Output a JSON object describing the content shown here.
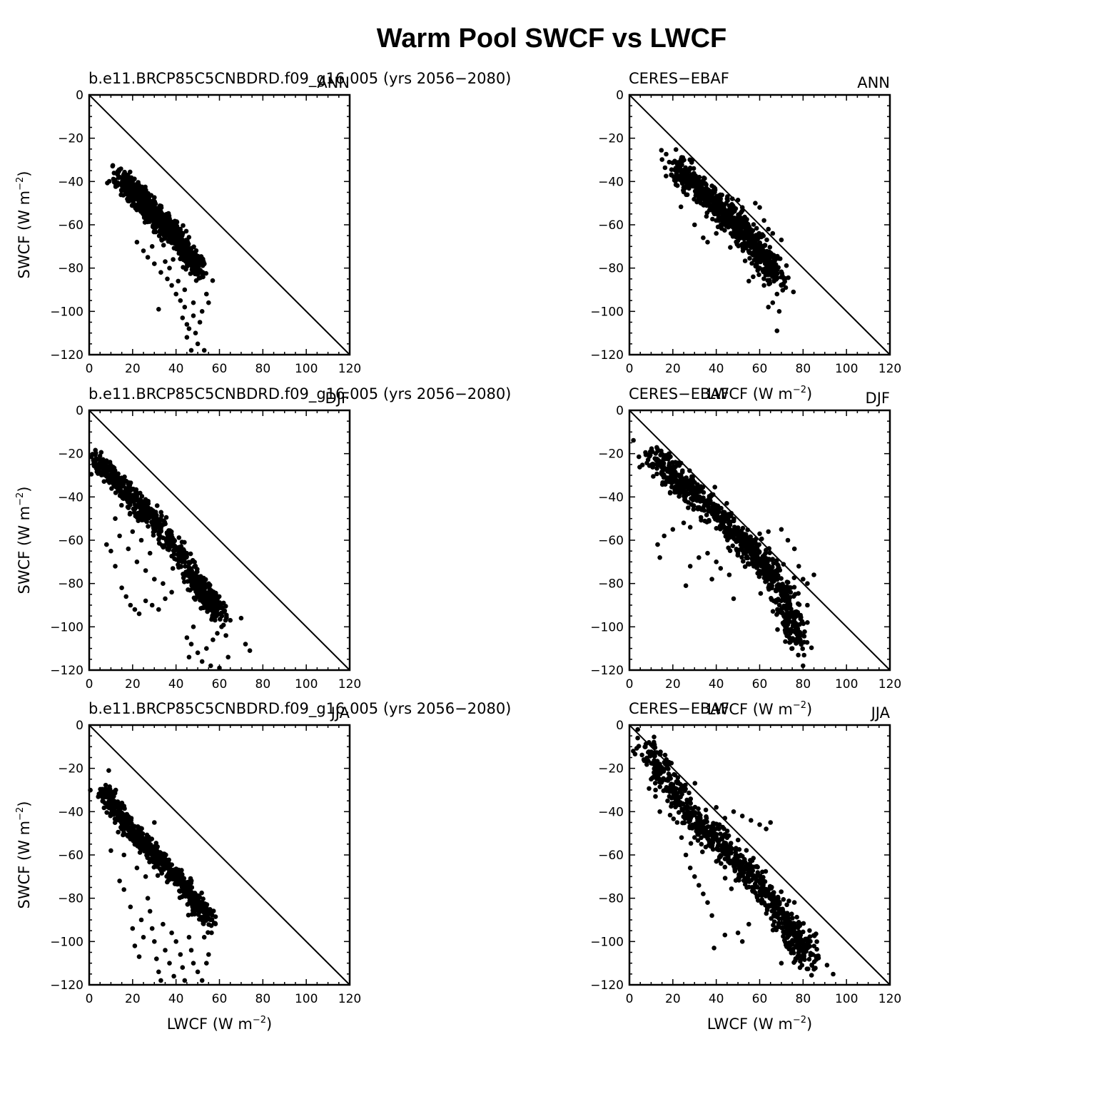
{
  "figure": {
    "title": "Warm Pool SWCF vs LWCF"
  },
  "chart_data": [
    {
      "type": "scatter",
      "left_string": "b.e11.BRCP85C5CNBDRD.f09_g16.005 (yrs 2056−2080)",
      "right_string": "ANN",
      "ylabel": "SWCF (W m⁻²)",
      "ylabel_main": "SWCF (W m",
      "ylabel_sup": "−2",
      "ylabel_close": ")",
      "xlabel_main": "",
      "xlabel_sup": "",
      "xlabel_close": "",
      "xlim": [
        0,
        120
      ],
      "ylim": [
        -120,
        0
      ],
      "x_ticks": [
        "0",
        "20",
        "40",
        "60",
        "80",
        "100",
        "120"
      ],
      "y_ticks": [
        "0",
        "−20",
        "−40",
        "−60",
        "−80",
        "−100",
        "−120"
      ],
      "reference_line": {
        "x": [
          0,
          120
        ],
        "y": [
          0,
          -120
        ]
      },
      "point_cloud": {
        "spine": [
          [
            15,
            -38
          ],
          [
            20,
            -44
          ],
          [
            25,
            -50
          ],
          [
            30,
            -55
          ],
          [
            35,
            -60
          ],
          [
            40,
            -66
          ],
          [
            45,
            -73
          ],
          [
            50,
            -80
          ]
        ],
        "spread": 4.5,
        "count": 900
      },
      "points": [
        [
          22,
          -68
        ],
        [
          25,
          -72
        ],
        [
          27,
          -75
        ],
        [
          30,
          -78
        ],
        [
          33,
          -82
        ],
        [
          36,
          -85
        ],
        [
          38,
          -88
        ],
        [
          32,
          -99
        ],
        [
          40,
          -92
        ],
        [
          42,
          -95
        ],
        [
          44,
          -98
        ],
        [
          43,
          -103
        ],
        [
          45,
          -106
        ],
        [
          46,
          -108
        ],
        [
          48,
          -102
        ],
        [
          49,
          -110
        ],
        [
          45,
          -112
        ],
        [
          50,
          -115
        ],
        [
          47,
          -118
        ],
        [
          53,
          -118
        ],
        [
          51,
          -105
        ],
        [
          48,
          -96
        ],
        [
          52,
          -100
        ],
        [
          54,
          -92
        ],
        [
          55,
          -96
        ],
        [
          44,
          -90
        ],
        [
          41,
          -86
        ],
        [
          37,
          -80
        ],
        [
          35,
          -77
        ],
        [
          29,
          -70
        ]
      ]
    },
    {
      "type": "scatter",
      "left_string": "CERES−EBAF",
      "right_string": "ANN",
      "ylabel": "",
      "ylabel_main": "",
      "ylabel_sup": "",
      "ylabel_close": "",
      "xlabel_main": "LWCF (W m",
      "xlabel_sup": "−2",
      "xlabel_close": ")",
      "xlim": [
        0,
        120
      ],
      "ylim": [
        -120,
        0
      ],
      "x_ticks": [
        "0",
        "20",
        "40",
        "60",
        "80",
        "100",
        "120"
      ],
      "y_ticks": [
        "0",
        "−20",
        "−40",
        "−60",
        "−80",
        "−100",
        "−120"
      ],
      "reference_line": {
        "x": [
          0,
          120
        ],
        "y": [
          0,
          -120
        ]
      },
      "point_cloud": {
        "spine": [
          [
            22,
            -34
          ],
          [
            28,
            -39
          ],
          [
            34,
            -45
          ],
          [
            40,
            -51
          ],
          [
            46,
            -57
          ],
          [
            52,
            -63
          ],
          [
            58,
            -70
          ],
          [
            63,
            -76
          ],
          [
            67,
            -83
          ]
        ],
        "spread": 5.5,
        "count": 800
      },
      "points": [
        [
          29,
          -30
        ],
        [
          38,
          -42
        ],
        [
          30,
          -60
        ],
        [
          34,
          -66
        ],
        [
          45,
          -48
        ],
        [
          52,
          -52
        ],
        [
          58,
          -50
        ],
        [
          60,
          -52
        ],
        [
          62,
          -58
        ],
        [
          64,
          -62
        ],
        [
          66,
          -64
        ],
        [
          70,
          -67
        ],
        [
          72,
          -89
        ],
        [
          68,
          -92
        ],
        [
          66,
          -96
        ],
        [
          64,
          -98
        ],
        [
          68,
          -109
        ],
        [
          69,
          -100
        ],
        [
          62,
          -88
        ],
        [
          57,
          -84
        ],
        [
          55,
          -86
        ],
        [
          60,
          -80
        ],
        [
          65,
          -78
        ],
        [
          70,
          -88
        ],
        [
          36,
          -68
        ],
        [
          40,
          -64
        ]
      ]
    },
    {
      "type": "scatter",
      "left_string": "b.e11.BRCP85C5CNBDRD.f09_g16.005 (yrs 2056−2080)",
      "right_string": "DJF",
      "ylabel": "SWCF (W m⁻²)",
      "ylabel_main": "SWCF (W m",
      "ylabel_sup": "−2",
      "ylabel_close": ")",
      "xlabel_main": "",
      "xlabel_sup": "",
      "xlabel_close": "",
      "xlim": [
        0,
        120
      ],
      "ylim": [
        -120,
        0
      ],
      "x_ticks": [
        "0",
        "20",
        "40",
        "60",
        "80",
        "100",
        "120"
      ],
      "y_ticks": [
        "0",
        "−20",
        "−40",
        "−60",
        "−80",
        "−100",
        "−120"
      ],
      "reference_line": {
        "x": [
          0,
          120
        ],
        "y": [
          0,
          -120
        ]
      },
      "point_cloud": {
        "spine": [
          [
            4,
            -23
          ],
          [
            10,
            -30
          ],
          [
            17,
            -38
          ],
          [
            25,
            -46
          ],
          [
            32,
            -53
          ],
          [
            40,
            -64
          ],
          [
            48,
            -78
          ],
          [
            55,
            -87
          ],
          [
            60,
            -94
          ]
        ],
        "spread": 4.5,
        "count": 700
      },
      "points": [
        [
          8,
          -62
        ],
        [
          10,
          -65
        ],
        [
          12,
          -72
        ],
        [
          15,
          -82
        ],
        [
          17,
          -86
        ],
        [
          19,
          -90
        ],
        [
          21,
          -92
        ],
        [
          23,
          -94
        ],
        [
          26,
          -88
        ],
        [
          29,
          -90
        ],
        [
          32,
          -92
        ],
        [
          35,
          -87
        ],
        [
          38,
          -84
        ],
        [
          14,
          -58
        ],
        [
          18,
          -64
        ],
        [
          22,
          -70
        ],
        [
          26,
          -74
        ],
        [
          30,
          -78
        ],
        [
          34,
          -80
        ],
        [
          12,
          -50
        ],
        [
          20,
          -56
        ],
        [
          24,
          -60
        ],
        [
          28,
          -66
        ],
        [
          45,
          -105
        ],
        [
          47,
          -108
        ],
        [
          50,
          -112
        ],
        [
          52,
          -116
        ],
        [
          54,
          -110
        ],
        [
          57,
          -106
        ],
        [
          59,
          -103
        ],
        [
          61,
          -100
        ],
        [
          63,
          -104
        ],
        [
          65,
          -97
        ],
        [
          70,
          -96
        ],
        [
          72,
          -108
        ],
        [
          74,
          -111
        ],
        [
          48,
          -100
        ],
        [
          46,
          -114
        ],
        [
          56,
          -118
        ],
        [
          60,
          -119
        ],
        [
          64,
          -114
        ]
      ]
    },
    {
      "type": "scatter",
      "left_string": "CERES−EBAF",
      "right_string": "DJF",
      "ylabel": "",
      "ylabel_main": "",
      "ylabel_sup": "",
      "ylabel_close": "",
      "xlabel_main": "LWCF (W m",
      "xlabel_sup": "−2",
      "xlabel_close": ")",
      "xlim": [
        0,
        120
      ],
      "ylim": [
        -120,
        0
      ],
      "x_ticks": [
        "0",
        "20",
        "40",
        "60",
        "80",
        "100",
        "120"
      ],
      "y_ticks": [
        "0",
        "−20",
        "−40",
        "−60",
        "−80",
        "−100",
        "−120"
      ],
      "reference_line": {
        "x": [
          0,
          120
        ],
        "y": [
          0,
          -120
        ]
      },
      "point_cloud": {
        "spine": [
          [
            10,
            -21
          ],
          [
            18,
            -28
          ],
          [
            26,
            -35
          ],
          [
            34,
            -42
          ],
          [
            42,
            -50
          ],
          [
            50,
            -58
          ],
          [
            58,
            -66
          ],
          [
            64,
            -74
          ],
          [
            70,
            -84
          ],
          [
            74,
            -95
          ],
          [
            76,
            -106
          ]
        ],
        "spread": 5.5,
        "count": 900
      },
      "points": [
        [
          13,
          -18
        ],
        [
          13,
          -62
        ],
        [
          14,
          -68
        ],
        [
          16,
          -58
        ],
        [
          20,
          -55
        ],
        [
          25,
          -52
        ],
        [
          28,
          -54
        ],
        [
          26,
          -81
        ],
        [
          28,
          -72
        ],
        [
          32,
          -68
        ],
        [
          36,
          -66
        ],
        [
          40,
          -70
        ],
        [
          42,
          -73
        ],
        [
          46,
          -76
        ],
        [
          38,
          -78
        ],
        [
          50,
          -66
        ],
        [
          52,
          -63
        ],
        [
          56,
          -60
        ],
        [
          60,
          -57
        ],
        [
          64,
          -56
        ],
        [
          70,
          -55
        ],
        [
          73,
          -60
        ],
        [
          76,
          -64
        ],
        [
          78,
          -72
        ],
        [
          80,
          -78
        ],
        [
          82,
          -80
        ],
        [
          85,
          -76
        ],
        [
          48,
          -87
        ],
        [
          82,
          -90
        ],
        [
          82,
          -98
        ],
        [
          80,
          -104
        ],
        [
          80,
          -118
        ],
        [
          75,
          -110
        ]
      ]
    },
    {
      "type": "scatter",
      "left_string": "b.e11.BRCP85C5CNBDRD.f09_g16.005 (yrs 2056−2080)",
      "right_string": "JJA",
      "ylabel": "SWCF (W m⁻²)",
      "ylabel_main": "SWCF (W m",
      "ylabel_sup": "−2",
      "ylabel_close": ")",
      "xlabel_main": "LWCF (W m",
      "xlabel_sup": "−2",
      "xlabel_close": ")",
      "xlim": [
        0,
        120
      ],
      "ylim": [
        -120,
        0
      ],
      "x_ticks": [
        "0",
        "20",
        "40",
        "60",
        "80",
        "100",
        "120"
      ],
      "y_ticks": [
        "0",
        "−20",
        "−40",
        "−60",
        "−80",
        "−100",
        "−120"
      ],
      "reference_line": {
        "x": [
          0,
          120
        ],
        "y": [
          0,
          -120
        ]
      },
      "point_cloud": {
        "spine": [
          [
            7,
            -30
          ],
          [
            12,
            -38
          ],
          [
            18,
            -47
          ],
          [
            25,
            -55
          ],
          [
            32,
            -62
          ],
          [
            38,
            -68
          ],
          [
            44,
            -75
          ],
          [
            50,
            -83
          ],
          [
            55,
            -90
          ]
        ],
        "spread": 4.0,
        "count": 650
      },
      "points": [
        [
          9,
          -21
        ],
        [
          10,
          -58
        ],
        [
          14,
          -72
        ],
        [
          16,
          -76
        ],
        [
          19,
          -84
        ],
        [
          20,
          -94
        ],
        [
          21,
          -102
        ],
        [
          23,
          -107
        ],
        [
          24,
          -90
        ],
        [
          25,
          -98
        ],
        [
          27,
          -80
        ],
        [
          28,
          -86
        ],
        [
          29,
          -94
        ],
        [
          30,
          -100
        ],
        [
          31,
          -108
        ],
        [
          32,
          -114
        ],
        [
          33,
          -118
        ],
        [
          34,
          -92
        ],
        [
          35,
          -104
        ],
        [
          37,
          -110
        ],
        [
          38,
          -96
        ],
        [
          39,
          -116
        ],
        [
          40,
          -100
        ],
        [
          42,
          -106
        ],
        [
          43,
          -112
        ],
        [
          44,
          -118
        ],
        [
          46,
          -98
        ],
        [
          47,
          -104
        ],
        [
          48,
          -110
        ],
        [
          50,
          -114
        ],
        [
          52,
          -118
        ],
        [
          54,
          -110
        ],
        [
          55,
          -106
        ],
        [
          53,
          -98
        ],
        [
          30,
          -45
        ],
        [
          16,
          -60
        ],
        [
          22,
          -66
        ],
        [
          26,
          -70
        ]
      ]
    },
    {
      "type": "scatter",
      "left_string": "CERES−EBAF",
      "right_string": "JJA",
      "ylabel": "",
      "ylabel_main": "",
      "ylabel_sup": "",
      "ylabel_close": "",
      "xlabel_main": "LWCF (W m",
      "xlabel_sup": "−2",
      "xlabel_close": ")",
      "xlim": [
        0,
        120
      ],
      "ylim": [
        -120,
        0
      ],
      "x_ticks": [
        "0",
        "20",
        "40",
        "60",
        "80",
        "100",
        "120"
      ],
      "y_ticks": [
        "0",
        "−20",
        "−40",
        "−60",
        "−80",
        "−100",
        "−120"
      ],
      "reference_line": {
        "x": [
          0,
          120
        ],
        "y": [
          0,
          -120
        ]
      },
      "point_cloud": {
        "spine": [
          [
            8,
            -10
          ],
          [
            14,
            -20
          ],
          [
            20,
            -30
          ],
          [
            27,
            -40
          ],
          [
            34,
            -48
          ],
          [
            42,
            -56
          ],
          [
            50,
            -64
          ],
          [
            58,
            -72
          ],
          [
            66,
            -82
          ],
          [
            73,
            -92
          ],
          [
            79,
            -101
          ],
          [
            82,
            -108
          ]
        ],
        "spread": 6.0,
        "count": 800
      },
      "points": [
        [
          9,
          -8
        ],
        [
          10,
          -25
        ],
        [
          12,
          -33
        ],
        [
          14,
          -40
        ],
        [
          22,
          -45
        ],
        [
          24,
          -52
        ],
        [
          26,
          -60
        ],
        [
          28,
          -66
        ],
        [
          30,
          -70
        ],
        [
          32,
          -74
        ],
        [
          34,
          -78
        ],
        [
          36,
          -82
        ],
        [
          38,
          -88
        ],
        [
          39,
          -103
        ],
        [
          44,
          -97
        ],
        [
          50,
          -96
        ],
        [
          52,
          -100
        ],
        [
          55,
          -92
        ],
        [
          62,
          -82
        ],
        [
          70,
          -110
        ],
        [
          65,
          -45
        ],
        [
          63,
          -48
        ],
        [
          60,
          -46
        ],
        [
          56,
          -44
        ],
        [
          52,
          -42
        ],
        [
          48,
          -40
        ],
        [
          44,
          -43
        ],
        [
          40,
          -38
        ]
      ]
    }
  ]
}
